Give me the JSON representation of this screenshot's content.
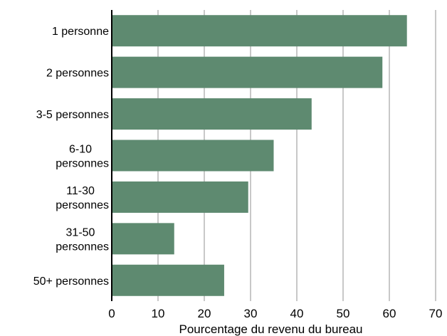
{
  "chart_data": {
    "type": "bar",
    "orientation": "horizontal",
    "categories": [
      [
        "1 personne"
      ],
      [
        "2 personnes"
      ],
      [
        "3-5 personnes"
      ],
      [
        "6-10",
        "personnes"
      ],
      [
        "11-30",
        "personnes"
      ],
      [
        "31-50",
        "personnes"
      ],
      [
        "50+ personnes"
      ]
    ],
    "values": [
      63.8,
      58.5,
      43.2,
      35.0,
      29.5,
      13.5,
      24.3
    ],
    "xlabel": "Pourcentage du revenu du bureau",
    "xlim": [
      0,
      70
    ],
    "xticks": [
      0,
      10,
      20,
      30,
      40,
      50,
      60,
      70
    ],
    "grid": "vertical",
    "legend": "none",
    "bar_color": "#5e8a70",
    "grid_color": "#c8c8c8",
    "axis_color": "#000000"
  }
}
